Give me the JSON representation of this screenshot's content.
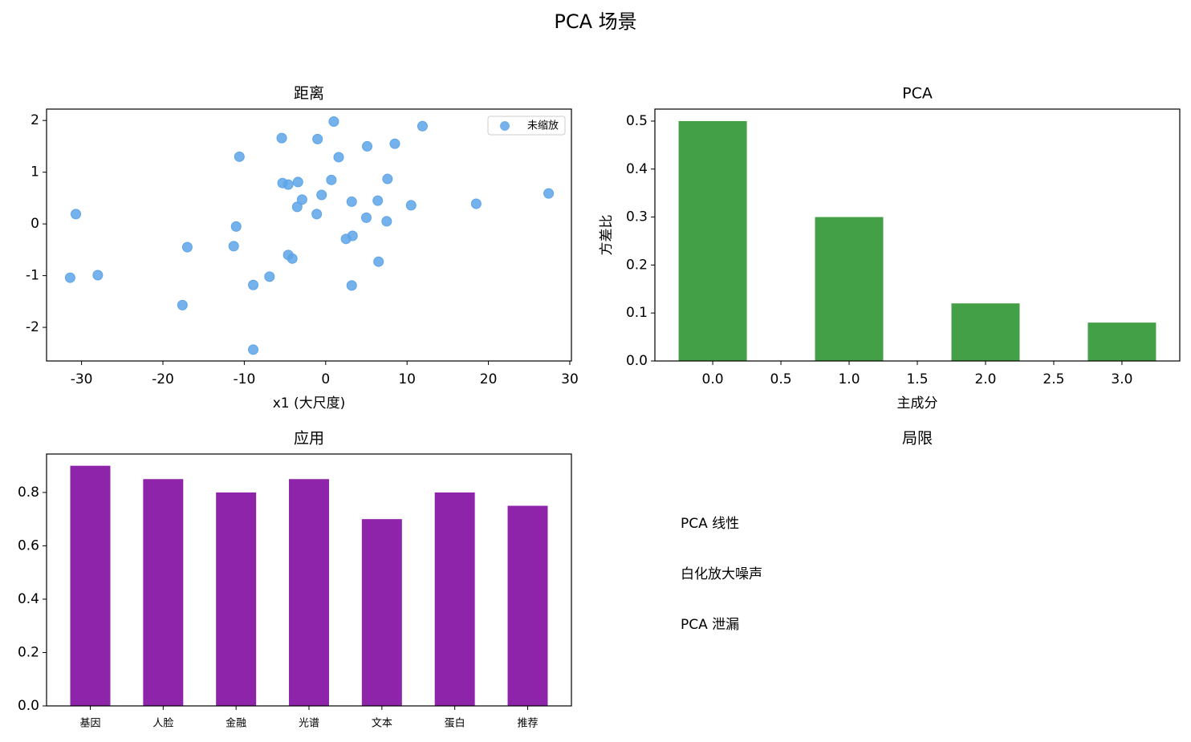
{
  "title": "PCA 场景",
  "chart_data": [
    {
      "type": "scatter",
      "title": "距离",
      "xlabel": "x1 (大尺度)",
      "legend": "upper right",
      "xlim": [
        -34.3,
        30.2
      ],
      "ylim": [
        -2.65,
        2.22
      ],
      "xticks": [
        -30,
        -20,
        -10,
        0,
        10,
        20,
        30
      ],
      "yticks": [
        -2,
        -1,
        0,
        1,
        2
      ],
      "series": [
        {
          "name": "未缩放",
          "color": "#5da5e8",
          "x": [
            -31.4,
            -30.7,
            -28.0,
            -17.6,
            -17.0,
            -11.3,
            -11.0,
            -10.6,
            -8.9,
            -8.9,
            -6.9,
            -5.4,
            -5.3,
            -4.6,
            -4.6,
            -4.1,
            -3.5,
            -3.4,
            -2.9,
            -1.1,
            -1.0,
            -0.5,
            0.7,
            1.0,
            1.6,
            2.5,
            3.2,
            3.2,
            3.3,
            5.0,
            5.1,
            6.4,
            6.5,
            7.5,
            7.6,
            8.5,
            10.5,
            11.9,
            18.5,
            27.4
          ],
          "values": [
            -1.04,
            0.19,
            -0.99,
            -1.57,
            -0.45,
            -0.43,
            -0.05,
            1.3,
            -1.18,
            -2.43,
            -1.02,
            1.66,
            0.79,
            0.76,
            -0.6,
            -0.67,
            0.33,
            0.81,
            0.47,
            0.19,
            1.64,
            0.56,
            0.85,
            1.98,
            1.29,
            -0.29,
            0.43,
            -1.19,
            -0.23,
            0.12,
            1.5,
            0.45,
            -0.73,
            0.05,
            0.87,
            1.55,
            0.36,
            1.89,
            0.39,
            0.59
          ]
        }
      ]
    },
    {
      "type": "bar",
      "title": "PCA",
      "xlabel": "主成分",
      "ylabel": "方差比",
      "color": "#43a047",
      "x": [
        0,
        1,
        2,
        3
      ],
      "values": [
        0.5,
        0.3,
        0.12,
        0.08
      ],
      "xlim": [
        -0.424,
        3.424
      ],
      "ylim": [
        0,
        0.525
      ],
      "xticks": [
        {
          "value": 0,
          "label": "0.0"
        },
        0.5,
        {
          "value": 1,
          "label": "1.0"
        },
        1.5,
        {
          "value": 2,
          "label": "2.0"
        },
        2.5,
        {
          "value": 3,
          "label": "3.0"
        }
      ],
      "yticks": [
        {
          "value": 0,
          "label": "0.0"
        },
        0.1,
        0.2,
        0.3,
        0.4,
        0.5
      ]
    },
    {
      "type": "bar",
      "title": "应用",
      "color": "#8e24aa",
      "categories": [
        "基因",
        "人脸",
        "金融",
        "光谱",
        "文本",
        "蛋白",
        "推荐"
      ],
      "values": [
        0.9,
        0.85,
        0.8,
        0.85,
        0.7,
        0.8,
        0.75
      ],
      "ylim": [
        0,
        0.944
      ],
      "yticks": [
        {
          "value": 0,
          "label": "0.0"
        },
        0.2,
        0.4,
        0.6,
        0.8
      ]
    },
    {
      "type": "text",
      "title": "局限",
      "lines": [
        "PCA 线性",
        "白化放大噪声",
        "PCA 泄漏"
      ]
    }
  ]
}
